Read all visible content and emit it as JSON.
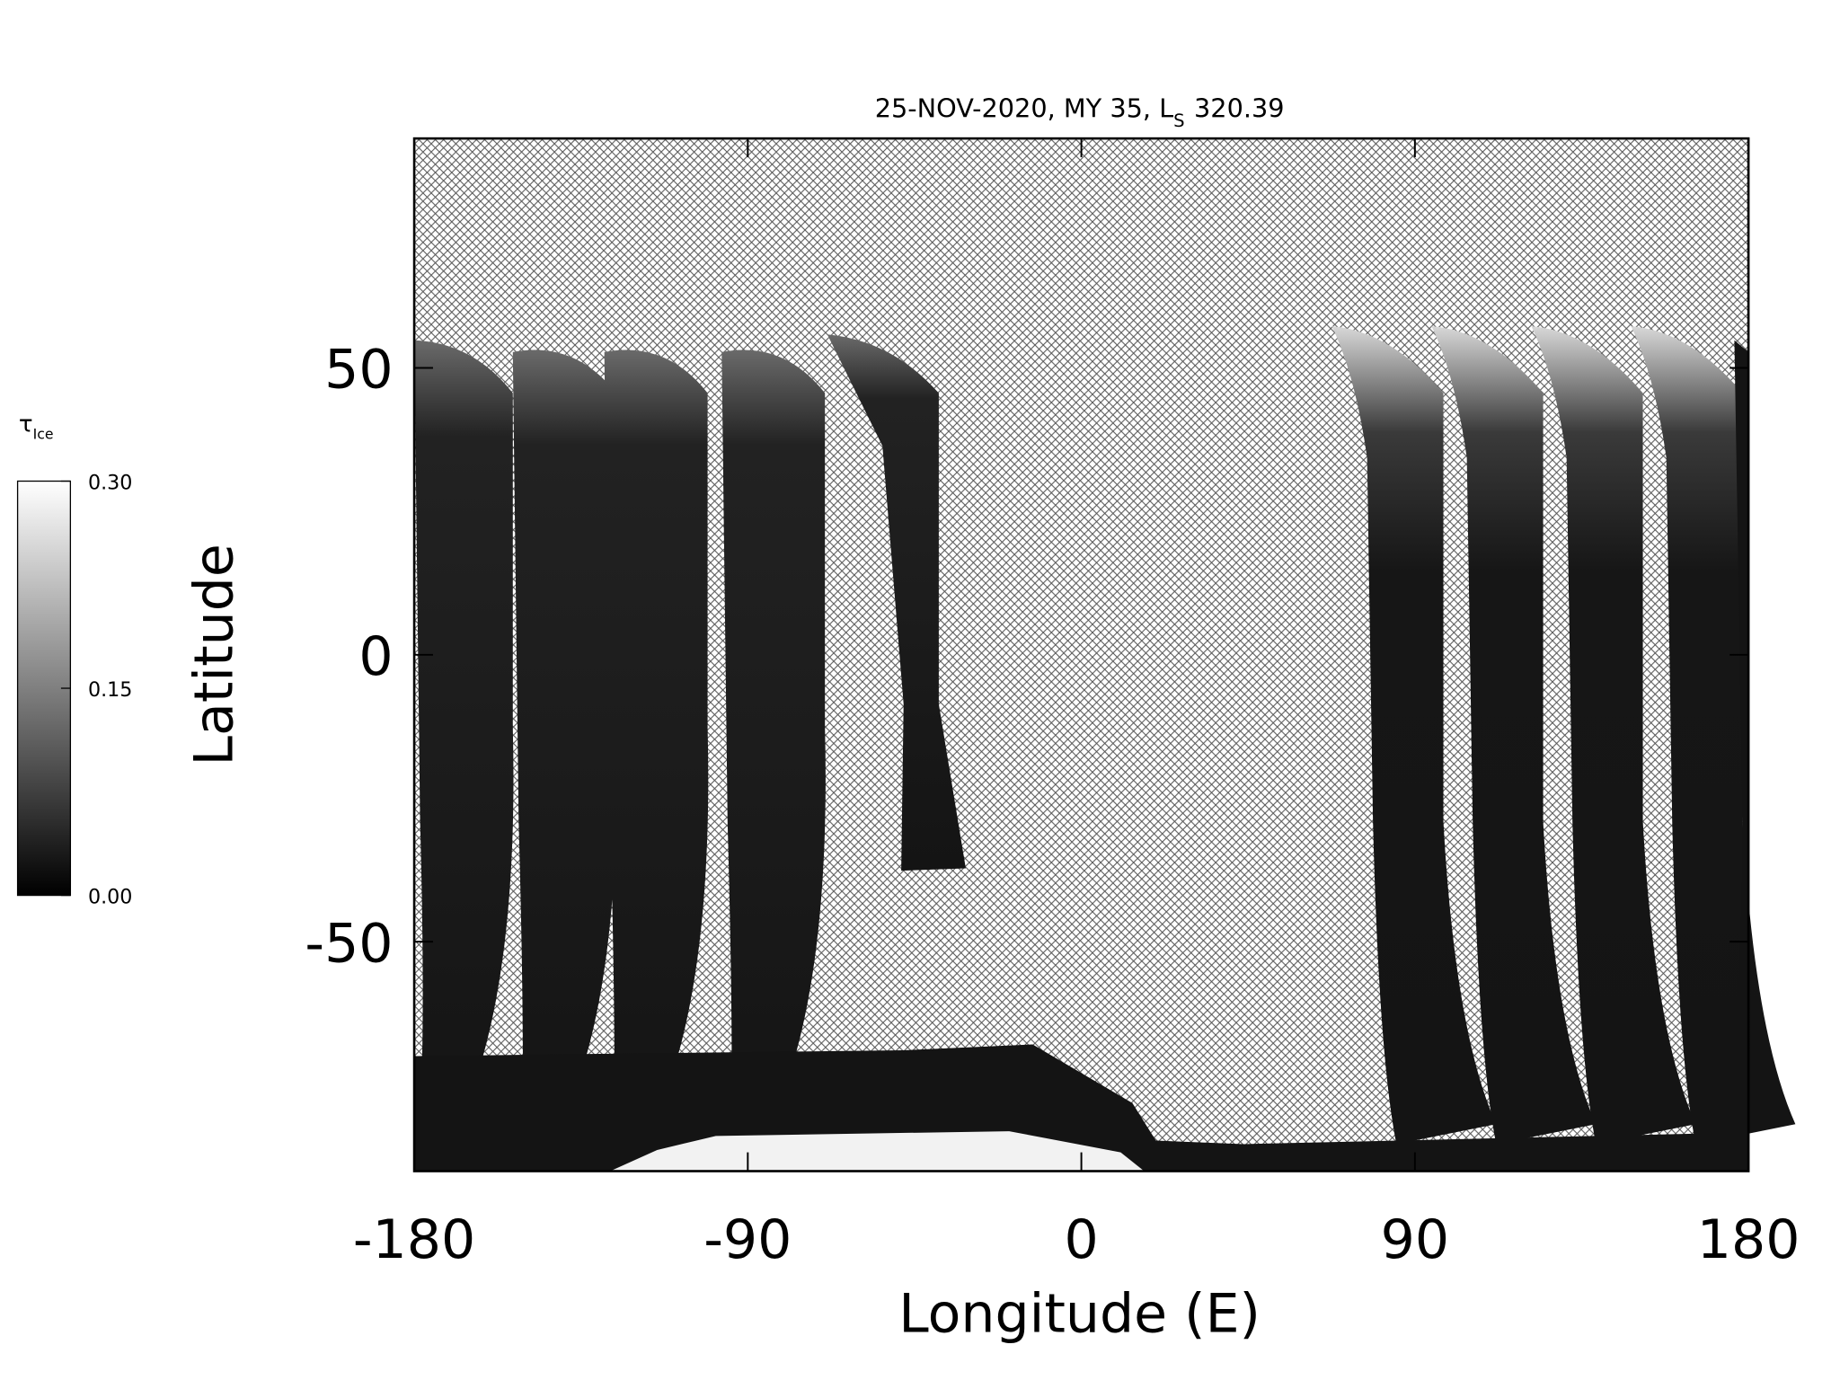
{
  "chart_data": {
    "type": "map",
    "title": {
      "prefix": "25-NOV-2020, MY 35,  L",
      "subscript": "S",
      "suffix": "320.39"
    },
    "x_label": "Longitude (E)",
    "y_label": "Latitude",
    "xlim": [
      -180,
      180
    ],
    "xticks": [
      -180,
      -90,
      0,
      90,
      180
    ],
    "ylim": [
      -90,
      90
    ],
    "yticks": [
      -50,
      0,
      50
    ],
    "colorbar": {
      "label": "τ",
      "label_subscript": "Ice",
      "lim": [
        0,
        0.3
      ],
      "ticks": [
        {
          "value": 0,
          "label": "0.00"
        },
        {
          "value": 0.15,
          "label": "0.15"
        },
        {
          "value": 0.3,
          "label": "0.30"
        }
      ],
      "colors": [
        "#000000",
        "#ffffff"
      ]
    }
  }
}
